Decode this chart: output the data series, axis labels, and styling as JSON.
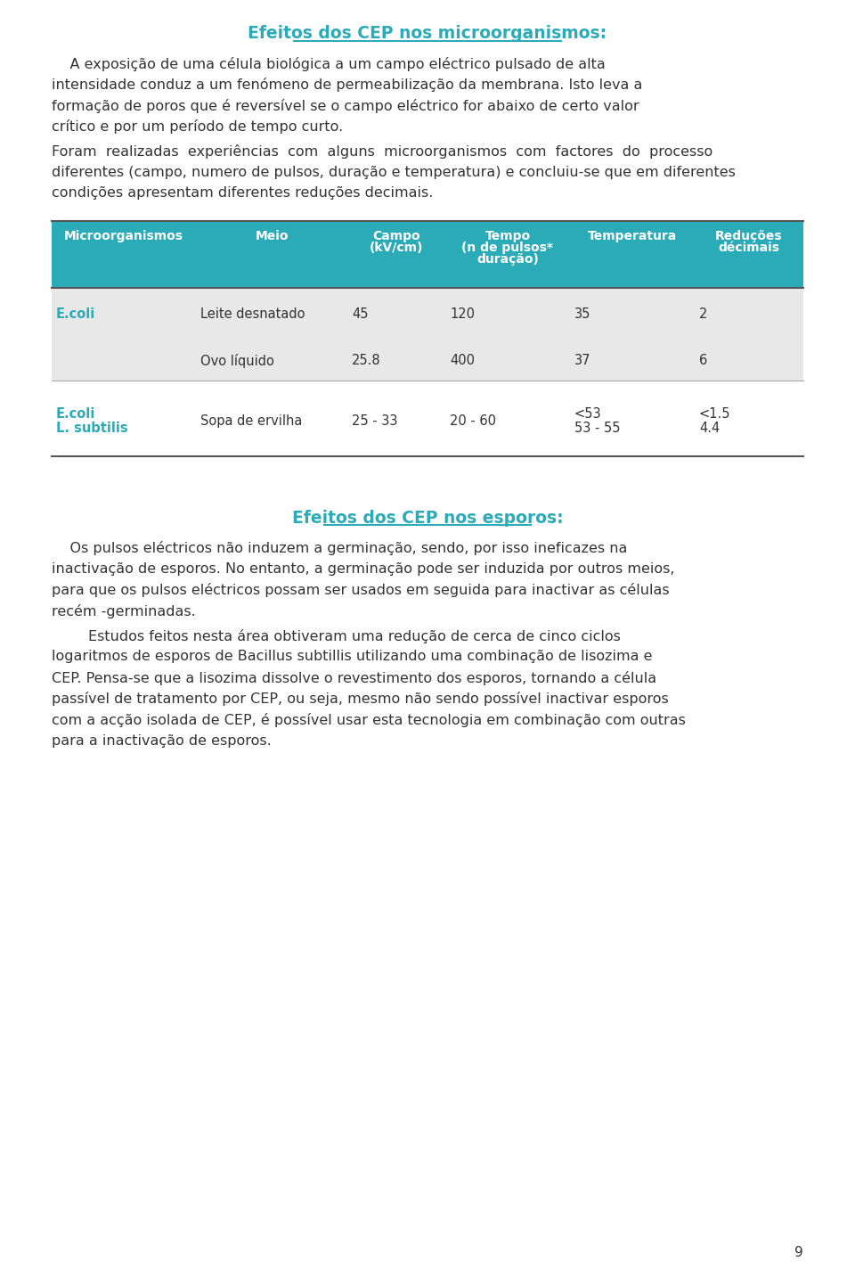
{
  "title1": "Efeitos dos CEP nos microorganismos:",
  "title2": "Efeitos dos CEP nos esporos:",
  "title_color": "#2BABB8",
  "body_color": "#333333",
  "bg_color": "#FFFFFF",
  "header_bg": "#2BABB8",
  "header_text_color": "#FFFFFF",
  "row1_bg": "#E8E8E8",
  "row2_bg": "#FFFFFF",
  "row3_bg": "#FFFFFF",
  "para1": "A exposição de uma célula biológica a um campo eléctrico pulsado de alta intensidade conduz a um fenómeno de permeabilização da membrana. Isto leva a formação de poros que é reversível se o campo eléctrico for abaixo de certo valor crítico e por um período de tempo curto.",
  "para2": "Foram realizadas experiências com alguns microorganismos com factores do processo diferentes (campo, numero de pulsos, duração e temperatura) e concluiu-se que em diferentes condições apresentam diferentes reduções decimais.",
  "para3": "Os pulsos eléctricos não induzem a germinação, sendo, por isso ineficazes na inactivação de esporos. No entanto, a germinação pode ser induzida por outros meios, para que os pulsos eléctricos possam ser usados em seguida para inactivar as células recém -germinadas.",
  "para4_indent": "Estudos feitos nesta área obtiveram uma redução de cerca de cinco ciclos logaritmos de esporos de Bacillus subtillis utilizando uma combinação de lisozima e CEP. Pensa-se que a lisozima dissolve o revestimento dos esporos, tornando a célula passível de tratamento por CEP, ou seja, mesmo não sendo possível inactivar esporos com a acção isolada de CEP, é possível usar esta tecnologia em combinação com outras para a inactivação de esporos.",
  "page_num": "9",
  "table_headers": [
    "Microorganismos",
    "Meio",
    "Campo\n(kV/cm)",
    "Tempo\n(n de pulsos*\nduração)",
    "Temperatura",
    "Reduções\ndécimais"
  ],
  "table_rows": [
    [
      "E.coli",
      "Leite desnatado",
      "45",
      "120",
      "35",
      "2"
    ],
    [
      "",
      "Ovo líquido",
      "25.8",
      "400",
      "37",
      "6"
    ],
    [
      "E.coli\nL. subtilis",
      "Sopa de ervilha",
      "25 - 33",
      "20 - 60",
      "<53\n53 - 55",
      "<1.5\n4.4"
    ]
  ],
  "font_family": "DejaVu Sans",
  "main_font_size": 11.5,
  "title_font_size": 13.5,
  "table_header_font_size": 10,
  "table_body_font_size": 10.5
}
